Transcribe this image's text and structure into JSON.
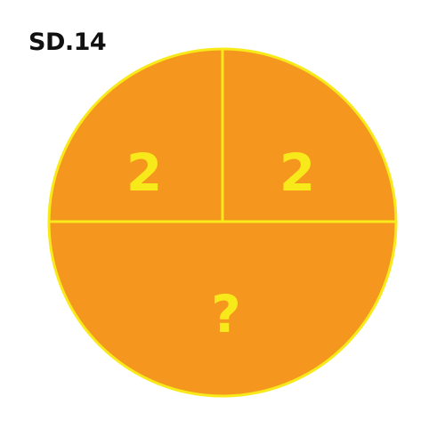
{
  "label": "SD.14",
  "colors": {
    "fill": "#F5961E",
    "stroke": "#F8EA1A",
    "text": "#F8EA1A",
    "label": "#111111"
  },
  "sections": {
    "top_left": "2",
    "top_right": "2",
    "bottom": "?"
  }
}
